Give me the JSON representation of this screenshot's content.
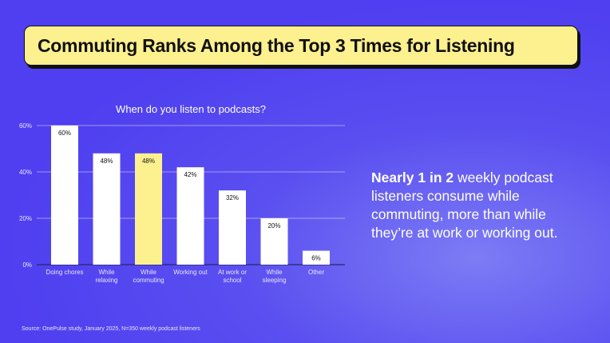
{
  "header": {
    "title": "Commuting Ranks Among the Top 3 Times for Listening"
  },
  "callout": {
    "bold": "Nearly 1 in 2",
    "rest": " weekly podcast listeners consume while commuting, more than while they’re at work or working out."
  },
  "source": "Source: OnePulse study, January 2025, N=350 weekly podcast listeners",
  "chart_data": {
    "type": "bar",
    "title": "When do you listen to podcasts?",
    "categories": [
      [
        "Doing chores"
      ],
      [
        "While",
        "relaxing"
      ],
      [
        "While",
        "commuting"
      ],
      [
        "Working out"
      ],
      [
        "At work or",
        "school"
      ],
      [
        "While",
        "sleeping"
      ],
      [
        "Other"
      ]
    ],
    "values": [
      60,
      48,
      48,
      42,
      32,
      20,
      6
    ],
    "value_labels": [
      "60%",
      "48%",
      "48%",
      "42%",
      "32%",
      "20%",
      "6%"
    ],
    "highlight_index": 2,
    "ylim": [
      0,
      60
    ],
    "yticks": [
      0,
      20,
      40,
      60
    ],
    "ytick_labels": [
      "0%",
      "20%",
      "40%",
      "60%"
    ],
    "grid": true,
    "colors": {
      "bar": "#ffffff",
      "highlight": "#fdf08f",
      "label": "#111111"
    }
  }
}
